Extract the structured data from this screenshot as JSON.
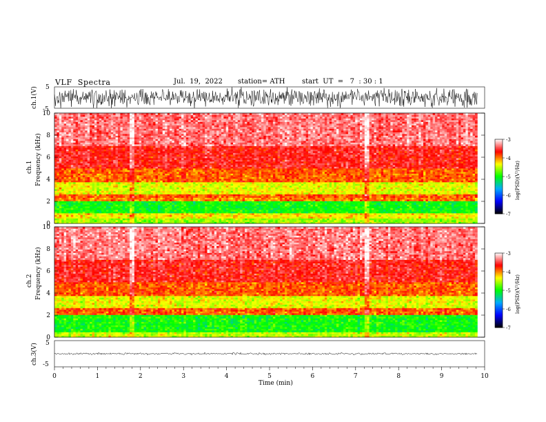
{
  "header": {
    "title": "VLF  Spectra",
    "date": "Jul.  19,  2022",
    "station": "station= ATH",
    "start": "start  UT  =   7  : 30 : 1"
  },
  "chart_data": [
    {
      "type": "line",
      "panel": "ch1-waveform",
      "ylabel": "ch.1(V)",
      "yticks": [
        "5",
        "-5"
      ],
      "ylim": [
        -5,
        5
      ],
      "xlim": [
        0,
        10
      ],
      "x_end": 9.83,
      "signal": "broadband noise, amplitude approximately ±5 V"
    },
    {
      "type": "heatmap",
      "panel": "ch1-spectrogram",
      "ylabel": "ch.1\nFrequency  (kHz)",
      "ylabel_lines": [
        "ch.1",
        "Frequency  (kHz)"
      ],
      "yticks": [
        0,
        2,
        4,
        6,
        8,
        10
      ],
      "ylim": [
        0,
        10
      ],
      "xlim": [
        0,
        10
      ],
      "x_end": 9.83,
      "colorbar": {
        "label": "log(PSD)(V²/Hz)",
        "ticks": [
          "-3",
          "-4",
          "-5",
          "-6",
          "-7"
        ],
        "range": [
          -7,
          -3
        ]
      },
      "bands": [
        {
          "f_low": 0.0,
          "f_high": 0.45,
          "level": -4.6
        },
        {
          "f_low": 0.45,
          "f_high": 1.0,
          "level": -4.3
        },
        {
          "f_low": 1.0,
          "f_high": 2.0,
          "level": -5.0
        },
        {
          "f_low": 2.0,
          "f_high": 2.3,
          "level": -4.0
        },
        {
          "f_low": 2.3,
          "f_high": 2.6,
          "level": -3.9
        },
        {
          "f_low": 2.6,
          "f_high": 3.8,
          "level": -4.4
        },
        {
          "f_low": 3.8,
          "f_high": 5.0,
          "level": -3.9
        },
        {
          "f_low": 5.0,
          "f_high": 7.0,
          "level": -3.6
        },
        {
          "f_low": 7.0,
          "f_high": 10.0,
          "level": -3.35
        }
      ],
      "bright_columns_min": [
        1.8,
        7.25
      ]
    },
    {
      "type": "heatmap",
      "panel": "ch2-spectrogram",
      "ylabel": "ch.2\nFrequency  (kHz)",
      "ylabel_lines": [
        "ch.2",
        "Frequency  (kHz)"
      ],
      "yticks": [
        0,
        2,
        4,
        6,
        8,
        10
      ],
      "ylim": [
        0,
        10
      ],
      "xlim": [
        0,
        10
      ],
      "x_end": 9.83,
      "colorbar": {
        "label": "log(PSD)(V²/Hz)",
        "ticks": [
          "-3",
          "-4",
          "-5",
          "-6",
          "-7"
        ],
        "range": [
          -7,
          -3
        ]
      },
      "bands": [
        {
          "f_low": 0.0,
          "f_high": 0.5,
          "level": -4.5
        },
        {
          "f_low": 0.5,
          "f_high": 2.0,
          "level": -5.0
        },
        {
          "f_low": 2.0,
          "f_high": 2.6,
          "level": -3.9
        },
        {
          "f_low": 2.6,
          "f_high": 3.8,
          "level": -4.4
        },
        {
          "f_low": 3.8,
          "f_high": 5.0,
          "level": -3.9
        },
        {
          "f_low": 5.0,
          "f_high": 7.0,
          "level": -3.6
        },
        {
          "f_low": 7.0,
          "f_high": 10.0,
          "level": -3.35
        }
      ],
      "bright_columns_min": [
        1.8,
        7.25
      ]
    },
    {
      "type": "line",
      "panel": "ch3-waveform",
      "ylabel": "ch.3(V)",
      "yticks": [
        "5",
        "-5"
      ],
      "ylim": [
        -5,
        5
      ],
      "xlim": [
        0,
        10
      ],
      "x_end": 9.83,
      "signal": "thin near-constant band centred at about 0 V",
      "xlabel": "Time  (min)",
      "xticks": [
        0,
        1,
        2,
        3,
        4,
        5,
        6,
        7,
        8,
        9,
        10
      ]
    }
  ],
  "colorscale": [
    "#000000",
    "#0000ff",
    "#00aaff",
    "#00ff00",
    "#ffff00",
    "#ff0000",
    "#ffffff"
  ]
}
